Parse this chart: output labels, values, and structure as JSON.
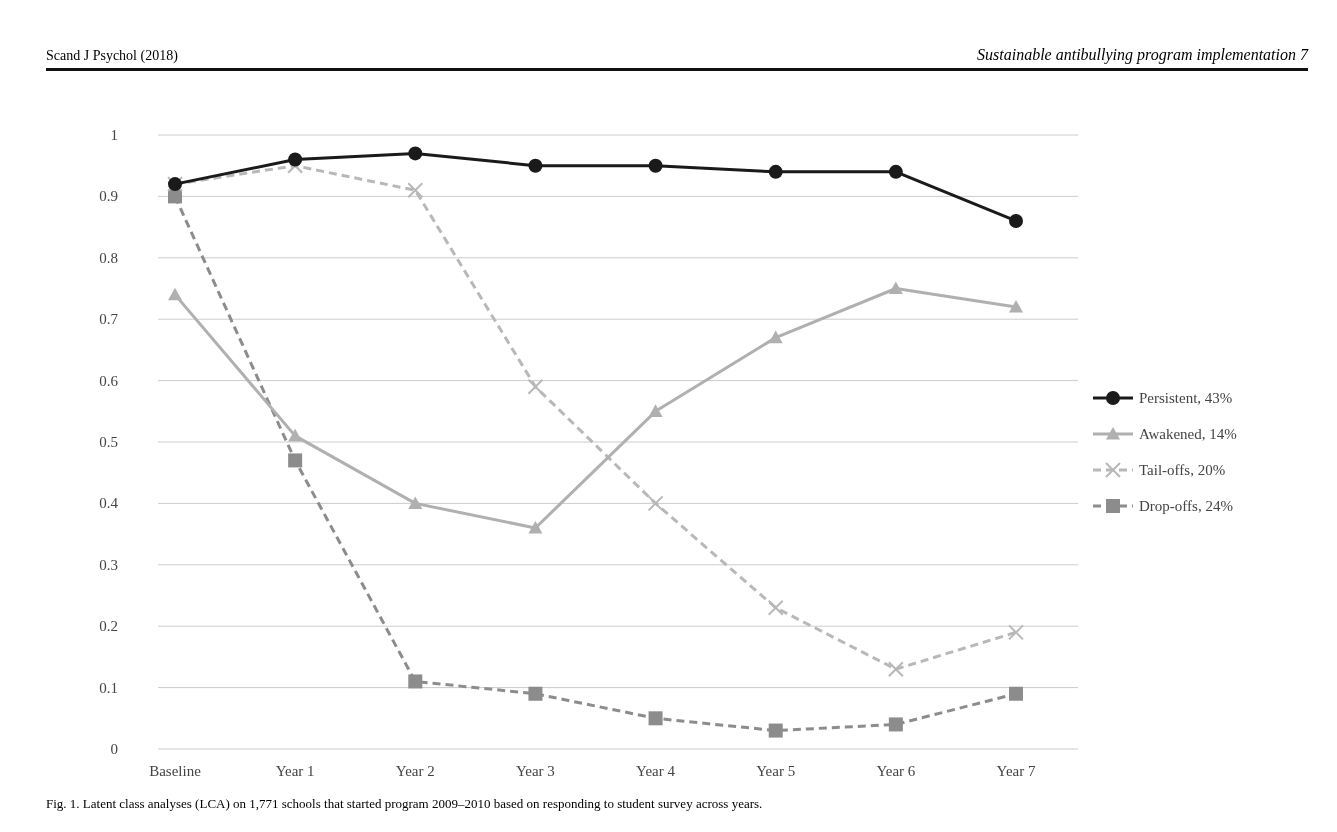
{
  "chart_data": {
    "type": "line",
    "categories": [
      "Baseline",
      "Year 1",
      "Year 2",
      "Year 3",
      "Year 4",
      "Year 5",
      "Year 6",
      "Year 7"
    ],
    "series": [
      {
        "name": "Persistent, 43%",
        "color": "#1a1a1a",
        "marker": "circle",
        "line_style": "solid",
        "values": [
          0.92,
          0.96,
          0.97,
          0.95,
          0.95,
          0.94,
          0.94,
          0.86
        ]
      },
      {
        "name": "Awakened, 14%",
        "color": "#b0b0b0",
        "marker": "triangle",
        "line_style": "solid",
        "values": [
          0.74,
          0.51,
          0.4,
          0.36,
          0.55,
          0.67,
          0.75,
          0.72
        ]
      },
      {
        "name": "Tail-offs, 20%",
        "color": "#b8b8b8",
        "marker": "cross",
        "line_style": "dashed",
        "values": [
          0.92,
          0.95,
          0.91,
          0.59,
          0.4,
          0.23,
          0.13,
          0.19
        ]
      },
      {
        "name": "Drop-offs, 24%",
        "color": "#8c8c8c",
        "marker": "square",
        "line_style": "dashed",
        "values": [
          0.9,
          0.47,
          0.11,
          0.09,
          0.05,
          0.03,
          0.04,
          0.09
        ]
      }
    ],
    "ylim": [
      0,
      1
    ],
    "yticks": [
      0,
      0.1,
      0.2,
      0.3,
      0.4,
      0.5,
      0.6,
      0.7,
      0.8,
      0.9,
      1
    ],
    "grid": "y",
    "legend": "right",
    "annotations": [
      "Scand J Psychol (2018)",
      "Sustainable antibullying program implementation 7",
      "Fig. 1. Latent class analyses (LCA) on 1,771 schools that started program 2009–2010 based on responding to student survey across years."
    ]
  }
}
